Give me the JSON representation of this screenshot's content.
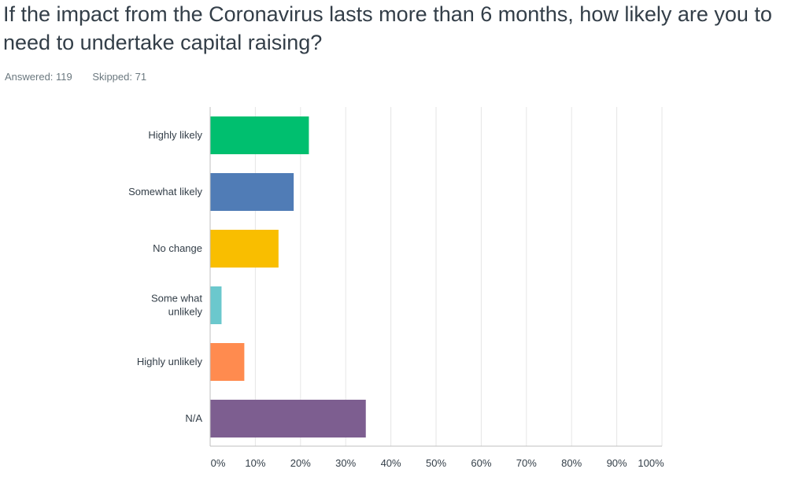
{
  "question": {
    "title": "If the impact from the Coronavirus lasts more than 6 months, how likely are you to need to undertake capital raising?"
  },
  "stats": {
    "answered": "Answered: 119",
    "skipped": "Skipped: 71"
  },
  "chart_data": {
    "type": "bar",
    "orientation": "horizontal",
    "categories": [
      [
        "Highly likely"
      ],
      [
        "Somewhat likely"
      ],
      [
        "No change"
      ],
      [
        "Some what",
        "unlikely"
      ],
      [
        "Highly unlikely"
      ],
      [
        "N/A"
      ]
    ],
    "values": [
      21.85,
      18.49,
      15.13,
      2.52,
      7.56,
      34.45
    ],
    "colors": [
      "#00bf6f",
      "#507cb6",
      "#f9be00",
      "#6bc8cd",
      "#ff8b4f",
      "#7d5e90"
    ],
    "x_ticks": [
      "0%",
      "10%",
      "20%",
      "30%",
      "40%",
      "50%",
      "60%",
      "70%",
      "80%",
      "90%",
      "100%"
    ],
    "xlim": [
      0,
      100
    ],
    "grid": true,
    "legend": "none"
  }
}
